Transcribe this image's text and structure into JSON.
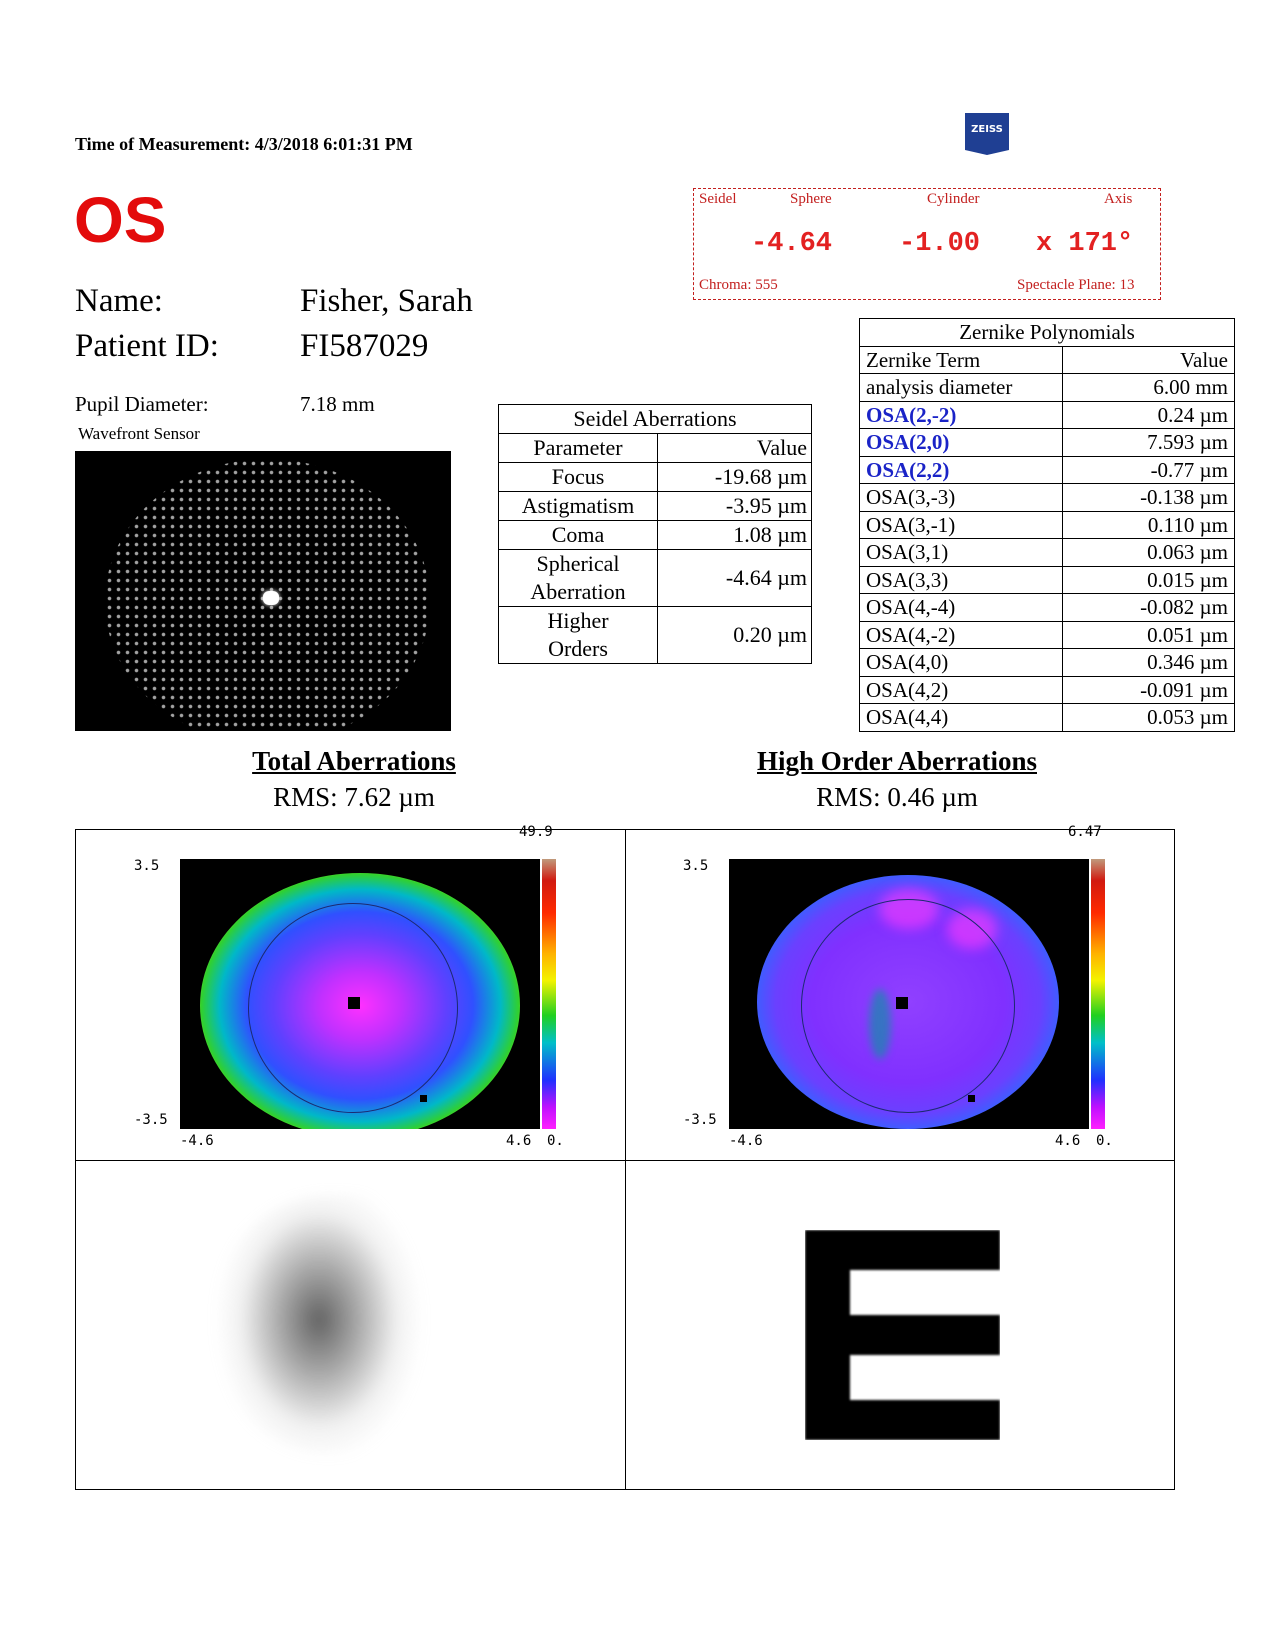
{
  "header": {
    "measurement_time": "Time of Measurement: 4/3/2018 6:01:31 PM",
    "logo_text": "ZEISS",
    "eye": "OS"
  },
  "patient": {
    "name_label": "Name:",
    "name_value": "Fisher, Sarah",
    "id_label": "Patient ID:",
    "id_value": "FI587029",
    "pupil_label": "Pupil Diameter:",
    "pupil_value": "7.18 mm",
    "sensor_label": "Wavefront Sensor"
  },
  "refraction": {
    "method_label": "Seidel",
    "sphere_label": "Sphere",
    "cylinder_label": "Cylinder",
    "axis_label": "Axis",
    "sphere": "-4.64",
    "cylinder": "-1.00",
    "axis": "x 171°",
    "chroma": "Chroma: 555",
    "spectacle_plane": "Spectacle Plane: 13"
  },
  "seidel": {
    "title": "Seidel Aberrations",
    "col_param": "Parameter",
    "col_value": "Value",
    "rows": [
      {
        "param": "Focus",
        "value": "-19.68 µm"
      },
      {
        "param": "Astigmatism",
        "value": "-3.95 µm"
      },
      {
        "param": "Coma",
        "value": "1.08 µm"
      },
      {
        "param": "Spherical",
        "param2": "Aberration",
        "value": "-4.64 µm"
      },
      {
        "param": "Higher",
        "param2": "Orders",
        "value": "0.20 µm"
      }
    ]
  },
  "zernike": {
    "title": "Zernike Polynomials",
    "col_term": "Zernike Term",
    "col_value": "Value",
    "rows": [
      {
        "term": "analysis diameter",
        "value": "6.00 mm"
      },
      {
        "term": "OSA(2,-2)",
        "value": "0.24 µm"
      },
      {
        "term": "OSA(2,0)",
        "value": "7.593 µm"
      },
      {
        "term": "OSA(2,2)",
        "value": "-0.77 µm"
      },
      {
        "term": "OSA(3,-3)",
        "value": "-0.138 µm"
      },
      {
        "term": "OSA(3,-1)",
        "value": "0.110 µm"
      },
      {
        "term": "OSA(3,1)",
        "value": "0.063 µm"
      },
      {
        "term": "OSA(3,3)",
        "value": "0.015 µm"
      },
      {
        "term": "OSA(4,-4)",
        "value": "-0.082 µm"
      },
      {
        "term": "OSA(4,-2)",
        "value": "0.051 µm"
      },
      {
        "term": "OSA(4,0)",
        "value": "0.346 µm"
      },
      {
        "term": "OSA(4,2)",
        "value": "-0.091 µm"
      },
      {
        "term": "OSA(4,4)",
        "value": "0.053 µm"
      }
    ]
  },
  "total": {
    "title": "Total Aberrations",
    "rms": "RMS: 7.62 µm",
    "scale_max": "49.9",
    "scale_min": "0.",
    "y_top": "3.5",
    "y_bottom": "-3.5",
    "x_left": "-4.6",
    "x_right": "4.6"
  },
  "high_order": {
    "title": "High Order Aberrations",
    "rms": "RMS: 0.46 µm",
    "scale_max": "6.47",
    "scale_min": "0.",
    "y_top": "3.5",
    "y_bottom": "-3.5",
    "x_left": "-4.6",
    "x_right": "4.6"
  },
  "colors": {
    "eye": "#e30b0b",
    "refraction": "#c3201f",
    "zernike_highlight": "#1a23c7",
    "logo": "#1f3f93"
  }
}
